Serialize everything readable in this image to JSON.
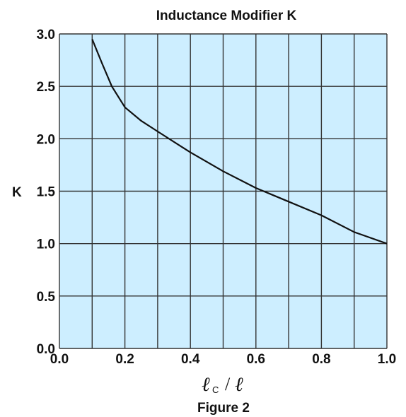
{
  "chart_data": {
    "type": "line",
    "title": "Inductance Modifier K",
    "ylabel": "K",
    "xlabel_symbol": "ℓ",
    "xlabel_subscript": "C",
    "xlabel_separator": "/",
    "xlabel_denominator": "ℓ",
    "caption": "Figure 2",
    "xlim": [
      0,
      1
    ],
    "ylim": [
      0,
      3
    ],
    "grid": true,
    "x_tick_labels": [
      "0.0",
      "0.2",
      "0.4",
      "0.6",
      "0.8",
      "1.0"
    ],
    "y_tick_labels": [
      "0.0",
      "0.5",
      "1.0",
      "1.5",
      "2.0",
      "2.5",
      "3.0"
    ],
    "series": [
      {
        "x": [
          0.1,
          0.13,
          0.16,
          0.2,
          0.25,
          0.3,
          0.4,
          0.5,
          0.6,
          0.7,
          0.8,
          0.9,
          1.0
        ],
        "y": [
          2.95,
          2.72,
          2.5,
          2.3,
          2.17,
          2.07,
          1.87,
          1.69,
          1.53,
          1.4,
          1.27,
          1.11,
          1.0
        ]
      }
    ],
    "colors": {
      "plot_background": "#cdeeff",
      "grid": "#333333",
      "line": "#111111"
    }
  }
}
